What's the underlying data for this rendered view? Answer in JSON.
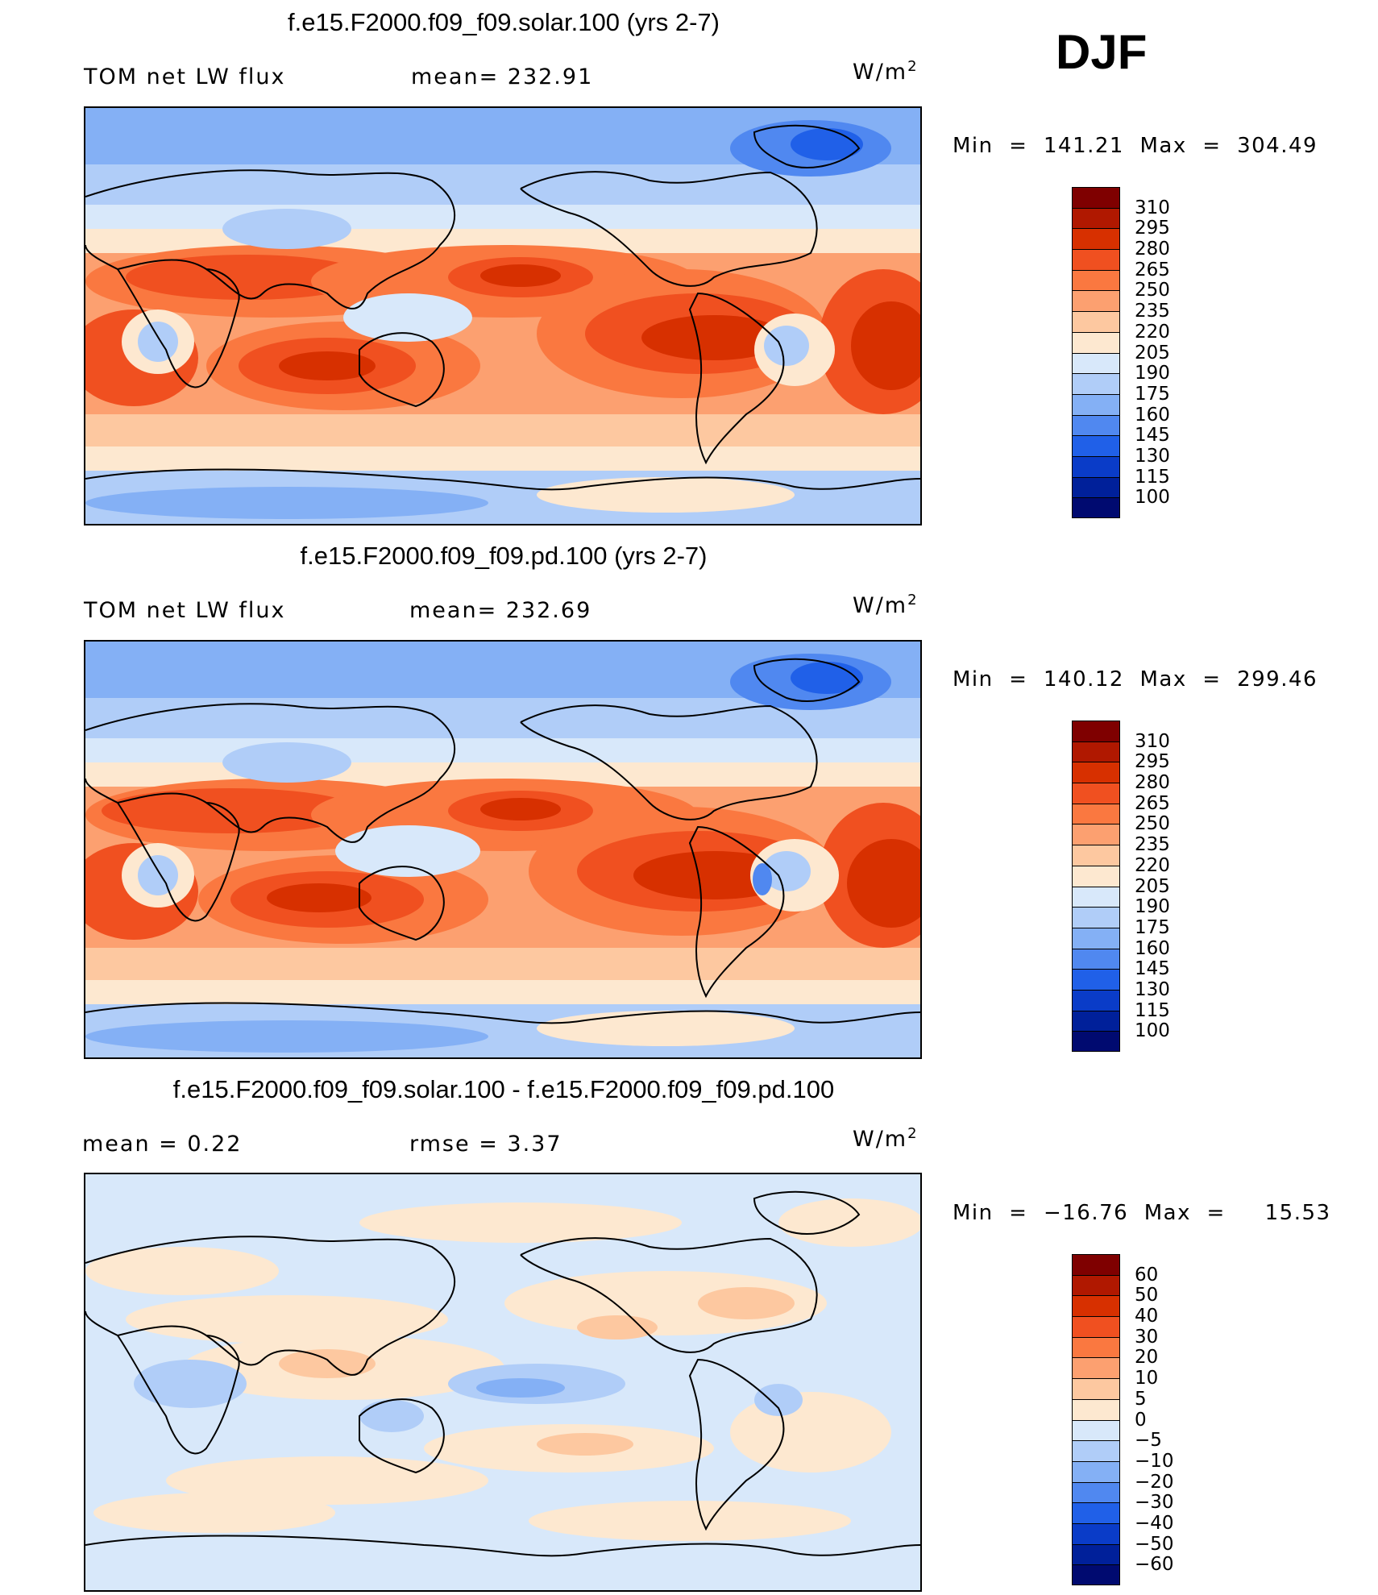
{
  "season": "DJF",
  "panels": [
    {
      "title": "f.e15.F2000.f09_f09.solar.100 (yrs 2-7)",
      "left_label": "TOM net LW flux",
      "center_label": "mean=  232.91",
      "units": "W/m",
      "units_exp": "2",
      "minmax": "Min  =  141.21  Max  =  304.49",
      "colorbar_labels": [
        "310",
        "295",
        "280",
        "265",
        "250",
        "235",
        "220",
        "205",
        "190",
        "175",
        "160",
        "145",
        "130",
        "115",
        "100"
      ]
    },
    {
      "title": "f.e15.F2000.f09_f09.pd.100 (yrs 2-7)",
      "left_label": "TOM net LW flux",
      "center_label": "mean=  232.69",
      "units": "W/m",
      "units_exp": "2",
      "minmax": "Min  =  140.12  Max  =  299.46",
      "colorbar_labels": [
        "310",
        "295",
        "280",
        "265",
        "250",
        "235",
        "220",
        "205",
        "190",
        "175",
        "160",
        "145",
        "130",
        "115",
        "100"
      ]
    },
    {
      "title": "f.e15.F2000.f09_f09.solar.100 - f.e15.F2000.f09_f09.pd.100",
      "left_label": "mean  =     0.22",
      "center_label": "rmse  =     3.37",
      "units": "W/m",
      "units_exp": "2",
      "minmax": "Min  =  −16.76  Max  =     15.53",
      "colorbar_labels": [
        "60",
        "50",
        "40",
        "30",
        "20",
        "10",
        "5",
        "0",
        "−5",
        "−10",
        "−20",
        "−30",
        "−40",
        "−50",
        "−60"
      ]
    }
  ],
  "colorbar_colors": [
    "#7f0000",
    "#b01800",
    "#d73000",
    "#f05020",
    "#fa7840",
    "#fca070",
    "#fdc8a0",
    "#fde8d0",
    "#d8e8fa",
    "#b0cdf8",
    "#84b0f5",
    "#5088f0",
    "#2060e8",
    "#0a3cc8",
    "#00209a",
    "#000a70"
  ],
  "chart_data": [
    {
      "type": "heatmap",
      "title": "f.e15.F2000.f09_f09.solar.100 (yrs 2-7)",
      "variable": "TOM net LW flux",
      "units": "W/m2",
      "mean": 232.91,
      "min": 141.21,
      "max": 304.49,
      "levels": [
        100,
        115,
        130,
        145,
        160,
        175,
        190,
        205,
        220,
        235,
        250,
        265,
        280,
        295,
        310
      ]
    },
    {
      "type": "heatmap",
      "title": "f.e15.F2000.f09_f09.pd.100 (yrs 2-7)",
      "variable": "TOM net LW flux",
      "units": "W/m2",
      "mean": 232.69,
      "min": 140.12,
      "max": 299.46,
      "levels": [
        100,
        115,
        130,
        145,
        160,
        175,
        190,
        205,
        220,
        235,
        250,
        265,
        280,
        295,
        310
      ]
    },
    {
      "type": "heatmap",
      "title": "f.e15.F2000.f09_f09.solar.100 - f.e15.F2000.f09_f09.pd.100",
      "units": "W/m2",
      "mean": 0.22,
      "rmse": 3.37,
      "min": -16.76,
      "max": 15.53,
      "levels": [
        -60,
        -50,
        -40,
        -30,
        -20,
        -10,
        -5,
        0,
        5,
        10,
        20,
        30,
        40,
        50,
        60
      ]
    }
  ]
}
